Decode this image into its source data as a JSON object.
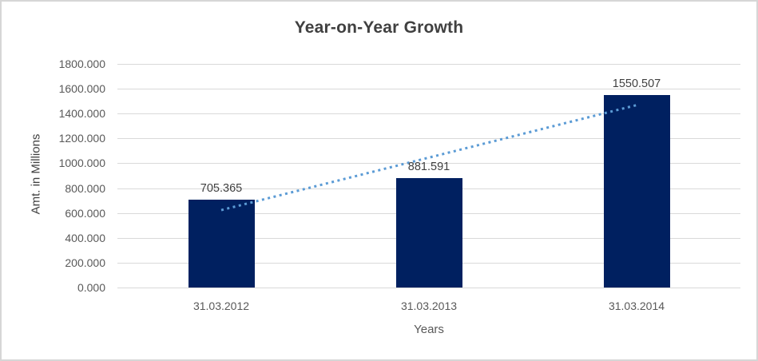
{
  "frame": {
    "background_color": "#FFFFFF",
    "border_color": "#D6D6D6"
  },
  "chart_data": {
    "type": "bar",
    "title": "Year-on-Year Growth",
    "categories": [
      "31.03.2012",
      "31.03.2013",
      "31.03.2014"
    ],
    "series": [
      {
        "name": "Amt. in Millions",
        "values": [
          705.365,
          881.591,
          1550.507
        ]
      }
    ],
    "value_labels": [
      "705.365",
      "881.591",
      "1550.507"
    ],
    "xlabel": "Years",
    "ylabel": "Amt. in Millions",
    "ylim": [
      0,
      1800
    ],
    "ytick_step": 200,
    "ytick_labels": [
      "1800.000",
      "1600.000",
      "1400.000",
      "1200.000",
      "1000.000",
      "800.000",
      "600.000",
      "400.000",
      "200.000",
      "0.000"
    ],
    "grid": "horizontal",
    "legend": "none",
    "bar_color": "#002060",
    "gridline_color": "#D9D9D9",
    "trendline": {
      "type": "linear",
      "style": "dotted",
      "color": "#5B9BD5",
      "start_value": 623.25,
      "end_value": 1468.39
    }
  },
  "text_colors": {
    "title": "#404040",
    "axis_labels": "#595959",
    "data_labels": "#404040"
  }
}
